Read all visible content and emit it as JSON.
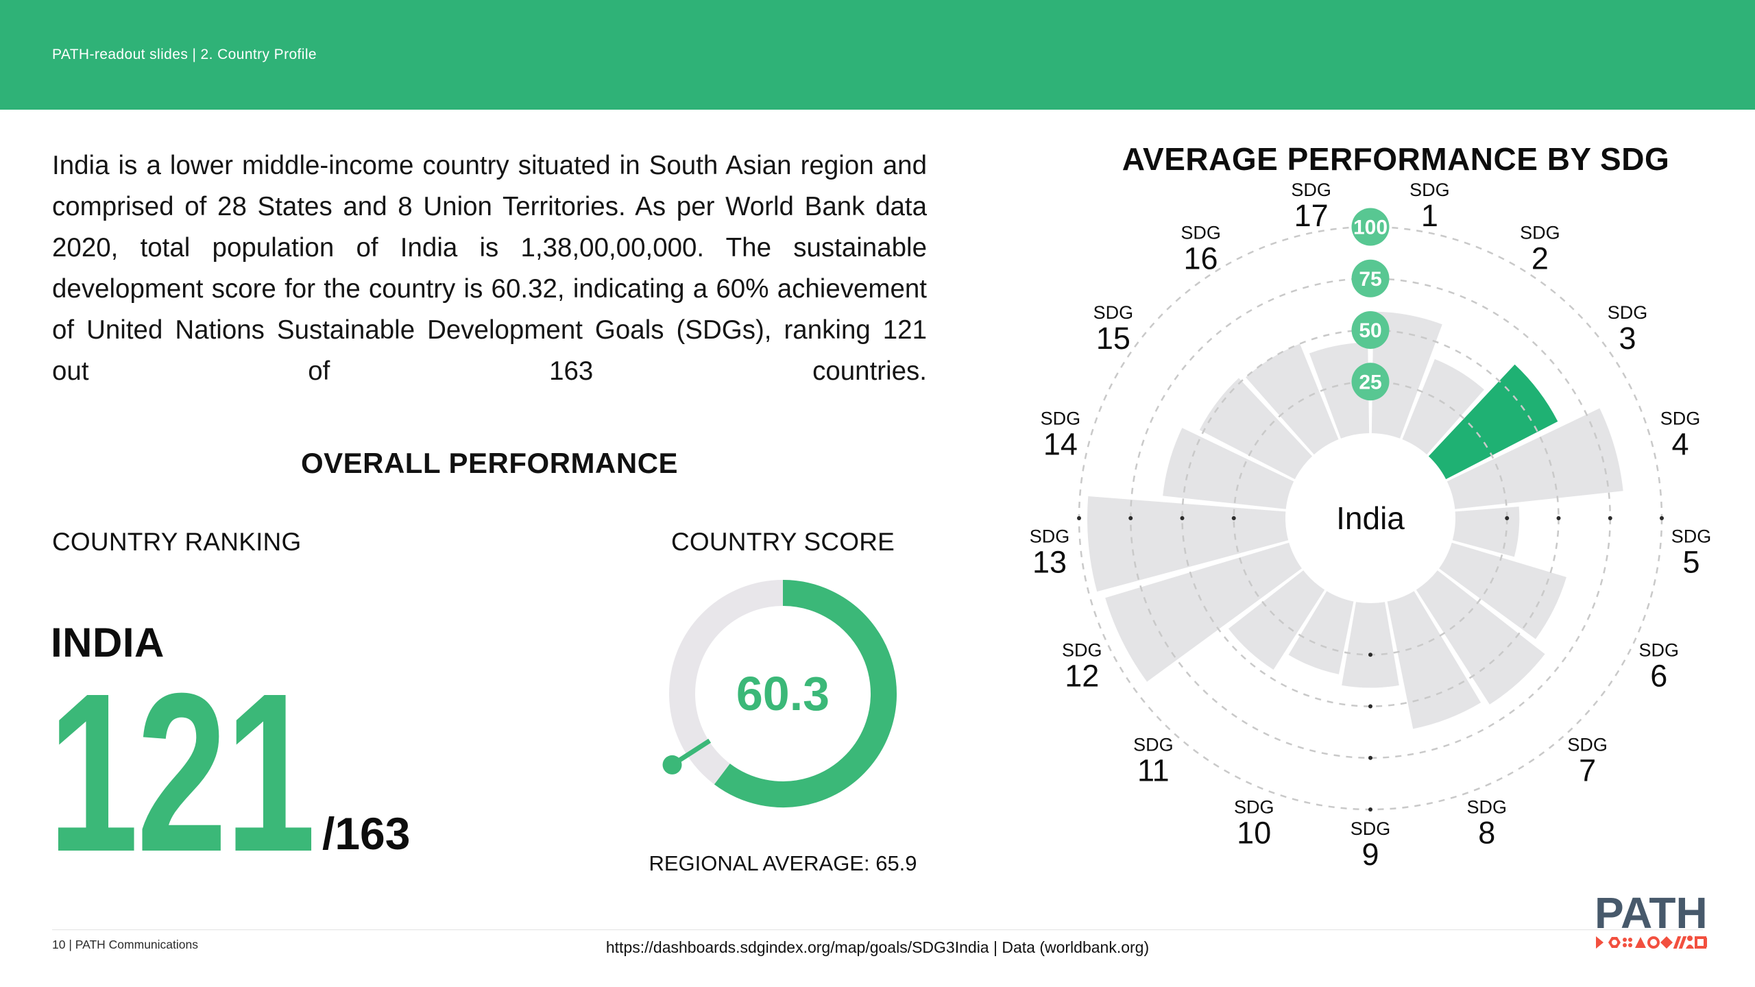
{
  "header": {
    "breadcrumb": "PATH-readout slides  |  2. Country Profile"
  },
  "intro_paragraph": "India is a lower middle-income country situated in South Asian region and comprised of 28 States and 8 Union Territories. As per World Bank data 2020, total population of India is 1,38,00,00,000. The sustainable development score for the country is 60.32, indicating a 60% achievement of United Nations Sustainable Development Goals (SDGs), ranking 121 out of 163 countries.",
  "overall_performance": {
    "section_title": "OVERALL PERFORMANCE",
    "ranking": {
      "label": "COUNTRY RANKING",
      "country": "INDIA",
      "rank": "121",
      "total": "/163"
    },
    "score": {
      "label": "COUNTRY SCORE",
      "value": 60.3,
      "display": "60.3",
      "max": 100,
      "regional_average": 65.9,
      "regional_average_label": "REGIONAL AVERAGE: 65.9"
    }
  },
  "chart_data": {
    "type": "bar",
    "subtype": "radial-polar-bars",
    "title": "AVERAGE PERFORMANCE BY SDG",
    "center_label": "India",
    "scale_max": 100,
    "rings": [
      25,
      50,
      75,
      100
    ],
    "categories": [
      "SDG 1",
      "SDG 2",
      "SDG 3",
      "SDG 4",
      "SDG 5",
      "SDG 6",
      "SDG 7",
      "SDG 8",
      "SDG 9",
      "SDG 10",
      "SDG 11",
      "SDG 12",
      "SDG 13",
      "SDG 14",
      "SDG 15",
      "SDG 16",
      "SDG 17"
    ],
    "values": [
      59,
      42,
      61,
      82,
      31,
      58,
      66,
      63,
      41,
      36,
      46,
      93,
      96,
      60,
      52,
      50,
      44
    ],
    "label_prefix": "SDG",
    "highlighted_category": "SDG 3",
    "legend": "none",
    "grid": "dashed-rings"
  },
  "footer": {
    "page_label": "10 | PATH Communications",
    "source": "https://dashboards.sdgindex.org/map/goals/SDG3India | Data (worldbank.org)",
    "logo_text": "PATH"
  },
  "colors": {
    "header_green": "#2fb277",
    "accent_green": "#3bb878",
    "sector_green": "#1fb173",
    "bubble_green": "#58c792",
    "bar_gray": "#e4e4e6",
    "ring_gray": "#c9c9c9",
    "donut_track": "#e8e6ea",
    "text_dark": "#111111",
    "logo_slate": "#47596b",
    "logo_red": "#f2503f"
  }
}
